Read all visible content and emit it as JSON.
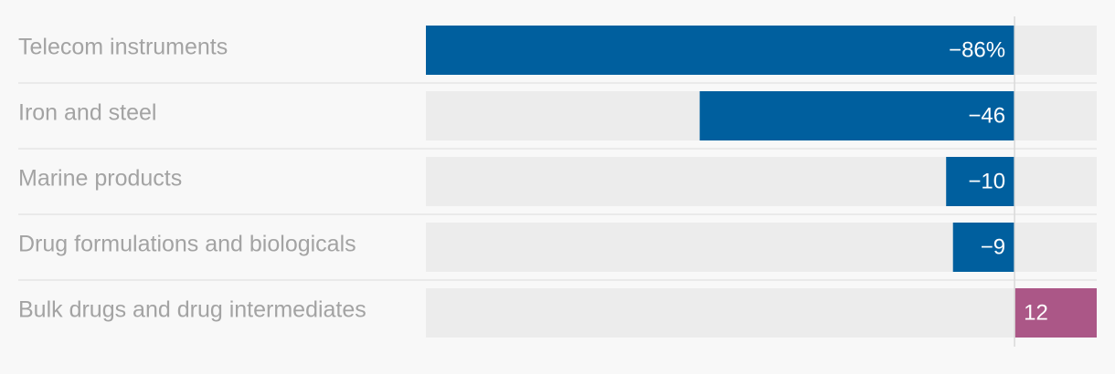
{
  "chart_data": {
    "type": "bar",
    "orientation": "horizontal",
    "categories": [
      "Telecom instruments",
      "Iron and steel",
      "Marine products",
      "Drug formulations and biologicals",
      "Bulk drugs and drug intermediates"
    ],
    "values": [
      -86,
      -46,
      -10,
      -9,
      12
    ],
    "value_labels": [
      "−86%",
      "−46",
      "−10",
      "−9",
      "12"
    ],
    "xlim": [
      -86,
      12
    ],
    "colors": {
      "negative": "#005f9e",
      "positive": "#ab5787",
      "track": "#ececec",
      "zero_line": "#d9d9d9",
      "row_divider": "#e6e6e6",
      "label_text": "#a3a3a3",
      "value_text": "#ffffff"
    }
  }
}
